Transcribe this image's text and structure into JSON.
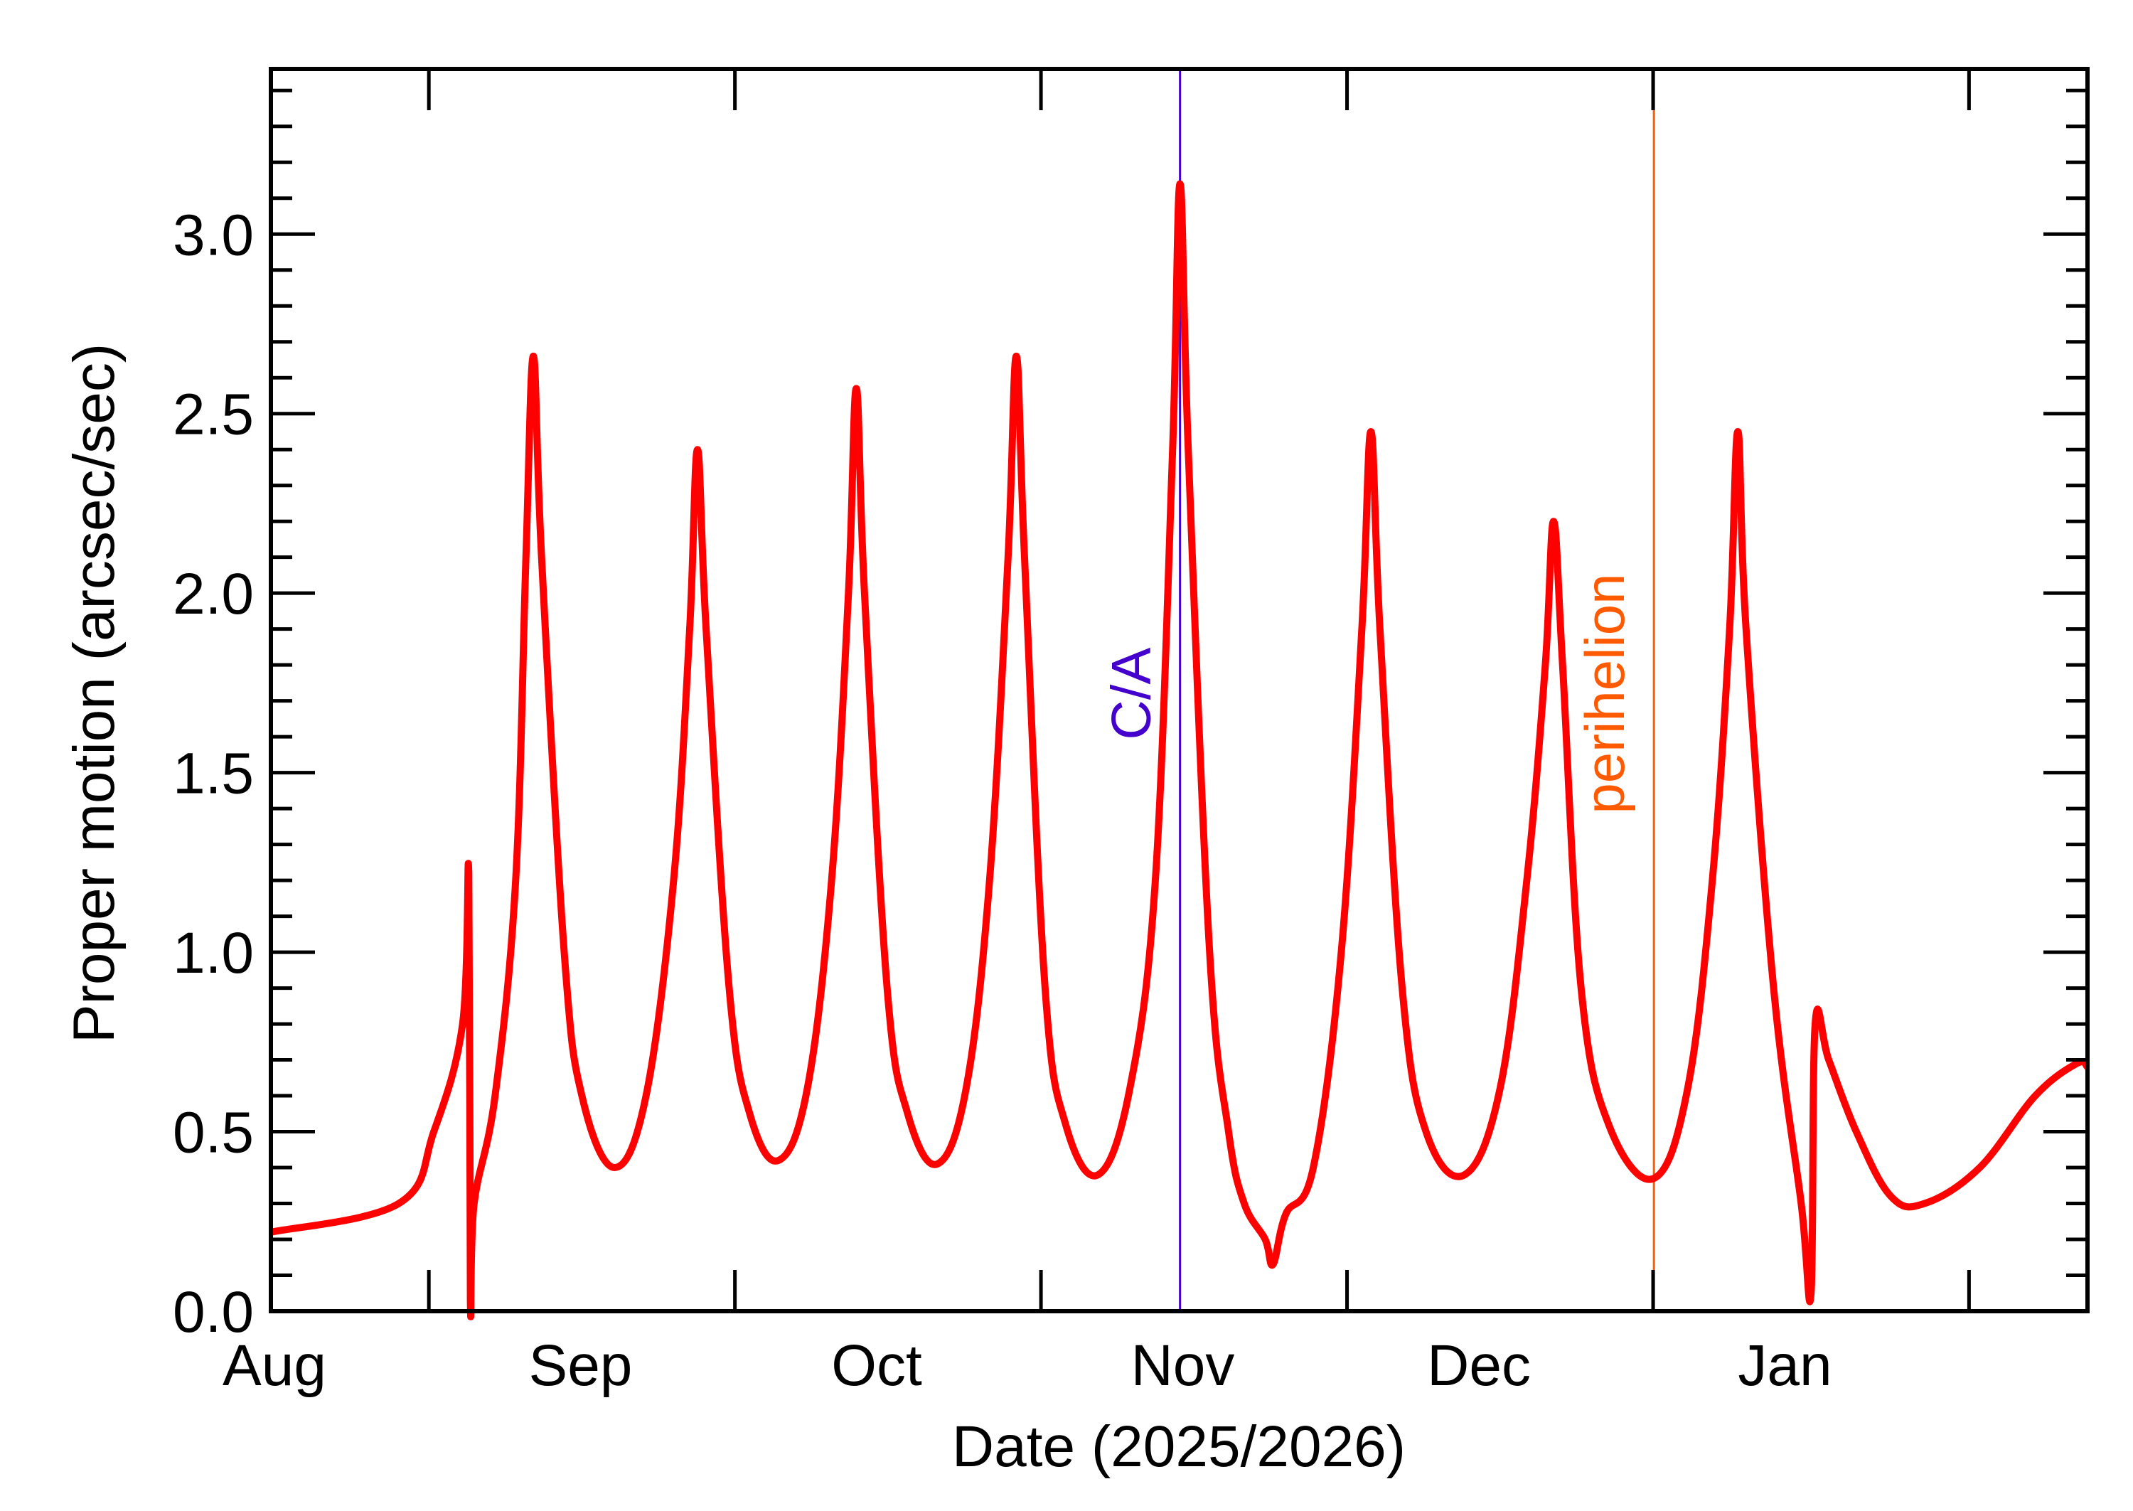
{
  "chart_data": {
    "type": "line",
    "title": "",
    "xlabel": "Date (2025/2026)",
    "ylabel": "Proper motion (arcsec/sec)",
    "xlim": [
      "2025-08-01T00:00",
      "2026-02-01T00:00"
    ],
    "ylim": [
      0,
      3.46
    ],
    "grid": false,
    "x_tick_labels": [
      {
        "label": "Aug",
        "date": "2025-08-01"
      },
      {
        "label": "Sep",
        "date": "2025-09-01"
      },
      {
        "label": "Oct",
        "date": "2025-10-01"
      },
      {
        "label": "Nov",
        "date": "2025-11-01"
      },
      {
        "label": "Dec",
        "date": "2025-12-01"
      },
      {
        "label": "Jan",
        "date": "2026-01-01"
      }
    ],
    "x_major_ticks": [
      "2025-08-17",
      "2025-09-17",
      "2025-10-18",
      "2025-11-18",
      "2025-12-19",
      "2026-01-20"
    ],
    "y_ticks": [
      0.0,
      0.5,
      1.0,
      1.5,
      2.0,
      2.5,
      3.0
    ],
    "y_tick_labels": [
      "0.0",
      "0.5",
      "1.0",
      "1.5",
      "2.0",
      "2.5",
      "3.0"
    ],
    "y_minor_step": 0.1,
    "series": [
      {
        "color": "#ff0000",
        "points": [
          [
            "2025-08-01T00:00",
            0.22
          ],
          [
            "2025-08-13T23:00",
            0.3
          ],
          [
            "2025-08-17T12:00",
            0.5
          ],
          [
            "2025-08-20T10:00",
            0.8
          ],
          [
            "2025-08-21T01:00",
            1.22
          ],
          [
            "2025-08-21T05:00",
            0.03
          ],
          [
            "2025-08-21T14:00",
            0.3
          ],
          [
            "2025-08-23T17:00",
            0.6
          ],
          [
            "2025-08-25T19:00",
            1.2
          ],
          [
            "2025-08-26T20:00",
            2.1
          ],
          [
            "2025-08-27T14:00",
            2.66
          ],
          [
            "2025-08-28T10:00",
            2.1
          ],
          [
            "2025-08-30T17:00",
            1.0
          ],
          [
            "2025-09-01T12:00",
            0.6
          ],
          [
            "2025-09-04T19:00",
            0.4
          ],
          [
            "2025-09-08T00:00",
            0.6
          ],
          [
            "2025-09-10T19:00",
            1.2
          ],
          [
            "2025-09-12T10:00",
            1.9
          ],
          [
            "2025-09-13T05:00",
            2.4
          ],
          [
            "2025-09-14T02:00",
            1.9
          ],
          [
            "2025-09-16T10:00",
            0.9
          ],
          [
            "2025-09-18T12:00",
            0.55
          ],
          [
            "2025-09-21T10:00",
            0.42
          ],
          [
            "2025-09-24T08:00",
            0.62
          ],
          [
            "2025-09-26T19:00",
            1.2
          ],
          [
            "2025-09-28T12:00",
            2.0
          ],
          [
            "2025-09-29T07:00",
            2.57
          ],
          [
            "2025-09-30T03:00",
            2.0
          ],
          [
            "2025-10-02T10:00",
            0.9
          ],
          [
            "2025-10-04T12:00",
            0.55
          ],
          [
            "2025-10-07T12:00",
            0.41
          ],
          [
            "2025-10-10T10:00",
            0.62
          ],
          [
            "2025-10-12T19:00",
            1.2
          ],
          [
            "2025-10-14T16:00",
            2.1
          ],
          [
            "2025-10-15T12:00",
            2.66
          ],
          [
            "2025-10-16T08:00",
            2.1
          ],
          [
            "2025-10-18T10:00",
            0.9
          ],
          [
            "2025-10-20T12:00",
            0.52
          ],
          [
            "2025-10-23T19:00",
            0.38
          ],
          [
            "2025-10-27T00:00",
            0.62
          ],
          [
            "2025-10-29T14:00",
            1.2
          ],
          [
            "2025-10-31T08:00",
            2.4
          ],
          [
            "2025-11-01T02:00",
            3.14
          ],
          [
            "2025-11-01T22:00",
            2.4
          ],
          [
            "2025-11-04T02:00",
            1.0
          ],
          [
            "2025-11-06T00:00",
            0.5
          ],
          [
            "2025-11-07T14:00",
            0.3
          ],
          [
            "2025-11-09T17:00",
            0.2
          ],
          [
            "2025-11-10T12:00",
            0.13
          ],
          [
            "2025-11-11T19:00",
            0.27
          ],
          [
            "2025-11-14T14:00",
            0.4
          ],
          [
            "2025-11-17T10:00",
            1.0
          ],
          [
            "2025-11-19T12:00",
            1.9
          ],
          [
            "2025-11-20T10:00",
            2.45
          ],
          [
            "2025-11-21T08:00",
            1.9
          ],
          [
            "2025-11-23T14:00",
            0.9
          ],
          [
            "2025-11-26T00:00",
            0.5
          ],
          [
            "2025-11-29T22:00",
            0.38
          ],
          [
            "2025-12-03T12:00",
            0.62
          ],
          [
            "2025-12-06T05:00",
            1.2
          ],
          [
            "2025-12-08T02:00",
            1.8
          ],
          [
            "2025-12-08T22:00",
            2.2
          ],
          [
            "2025-12-09T20:00",
            1.8
          ],
          [
            "2025-12-11T17:00",
            0.9
          ],
          [
            "2025-12-14T12:00",
            0.52
          ],
          [
            "2025-12-19T02:00",
            0.37
          ],
          [
            "2025-12-22T12:00",
            0.62
          ],
          [
            "2025-12-25T00:00",
            1.2
          ],
          [
            "2025-12-26T18:00",
            1.9
          ],
          [
            "2025-12-27T14:00",
            2.45
          ],
          [
            "2025-12-28T10:00",
            1.9
          ],
          [
            "2025-12-31T05:00",
            0.9
          ],
          [
            "2026-01-03T00:00",
            0.3
          ],
          [
            "2026-01-04T00:00",
            0.05
          ],
          [
            "2026-01-04T10:00",
            0.8
          ],
          [
            "2026-01-05T19:00",
            0.7
          ],
          [
            "2026-01-08T14:00",
            0.5
          ],
          [
            "2026-01-12T02:00",
            0.32
          ],
          [
            "2026-01-15T12:00",
            0.3
          ],
          [
            "2026-01-21T02:00",
            0.4
          ],
          [
            "2026-01-26T17:00",
            0.6
          ],
          [
            "2026-01-30T22:00",
            0.69
          ],
          [
            "2026-02-01T00:00",
            0.68
          ]
        ]
      }
    ],
    "annotations": [
      {
        "label": "C/A",
        "date": "2025-11-01T02:00",
        "color": "#4400cc"
      },
      {
        "label": "perihelion",
        "date": "2025-12-19T02:00",
        "color": "#ff5a00"
      }
    ]
  }
}
